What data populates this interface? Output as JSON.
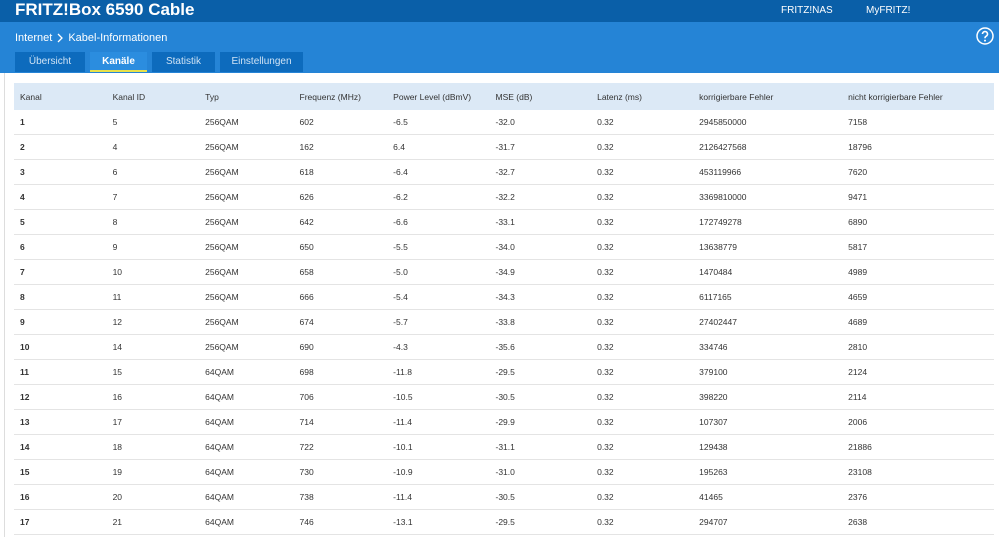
{
  "header": {
    "title": "FRITZ!Box 6590 Cable",
    "links": [
      "FRITZ!NAS",
      "MyFRITZ!"
    ]
  },
  "breadcrumb": [
    "Internet",
    "Kabel-Informationen"
  ],
  "tabs": [
    {
      "label": "Übersicht",
      "active": false
    },
    {
      "label": "Kanäle",
      "active": true
    },
    {
      "label": "Statistik",
      "active": false
    },
    {
      "label": "Einstellungen",
      "active": false
    }
  ],
  "table": {
    "header": [
      "Kanal",
      "Kanal ID",
      "Typ",
      "Frequenz (MHz)",
      "Power Level (dBmV)",
      "MSE (dB)",
      "Latenz (ms)",
      "korrigierbare Fehler",
      "nicht korrigierbare Fehler"
    ],
    "rows": [
      [
        "1",
        "5",
        "256QAM",
        "602",
        "-6.5",
        "-32.0",
        "0.32",
        "2945850000",
        "7158"
      ],
      [
        "2",
        "4",
        "256QAM",
        "162",
        "6.4",
        "-31.7",
        "0.32",
        "2126427568",
        "18796"
      ],
      [
        "3",
        "6",
        "256QAM",
        "618",
        "-6.4",
        "-32.7",
        "0.32",
        "453119966",
        "7620"
      ],
      [
        "4",
        "7",
        "256QAM",
        "626",
        "-6.2",
        "-32.2",
        "0.32",
        "3369810000",
        "9471"
      ],
      [
        "5",
        "8",
        "256QAM",
        "642",
        "-6.6",
        "-33.1",
        "0.32",
        "172749278",
        "6890"
      ],
      [
        "6",
        "9",
        "256QAM",
        "650",
        "-5.5",
        "-34.0",
        "0.32",
        "13638779",
        "5817"
      ],
      [
        "7",
        "10",
        "256QAM",
        "658",
        "-5.0",
        "-34.9",
        "0.32",
        "1470484",
        "4989"
      ],
      [
        "8",
        "11",
        "256QAM",
        "666",
        "-5.4",
        "-34.3",
        "0.32",
        "6117165",
        "4659"
      ],
      [
        "9",
        "12",
        "256QAM",
        "674",
        "-5.7",
        "-33.8",
        "0.32",
        "27402447",
        "4689"
      ],
      [
        "10",
        "14",
        "256QAM",
        "690",
        "-4.3",
        "-35.6",
        "0.32",
        "334746",
        "2810"
      ],
      [
        "11",
        "15",
        "64QAM",
        "698",
        "-11.8",
        "-29.5",
        "0.32",
        "379100",
        "2124"
      ],
      [
        "12",
        "16",
        "64QAM",
        "706",
        "-10.5",
        "-30.5",
        "0.32",
        "398220",
        "2114"
      ],
      [
        "13",
        "17",
        "64QAM",
        "714",
        "-11.4",
        "-29.9",
        "0.32",
        "107307",
        "2006"
      ],
      [
        "14",
        "18",
        "64QAM",
        "722",
        "-10.1",
        "-31.1",
        "0.32",
        "129438",
        "21886"
      ],
      [
        "15",
        "19",
        "64QAM",
        "730",
        "-10.9",
        "-31.0",
        "0.32",
        "195263",
        "23108"
      ],
      [
        "16",
        "20",
        "64QAM",
        "738",
        "-11.4",
        "-30.5",
        "0.32",
        "41465",
        "2376"
      ],
      [
        "17",
        "21",
        "64QAM",
        "746",
        "-13.1",
        "-29.5",
        "0.32",
        "294707",
        "2638"
      ]
    ]
  }
}
